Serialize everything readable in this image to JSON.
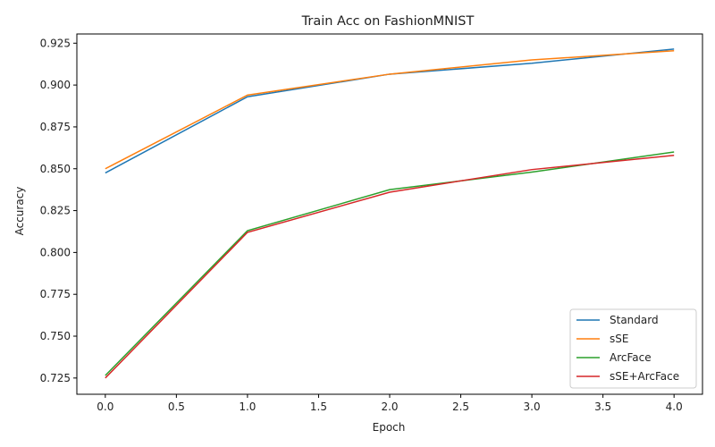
{
  "chart_data": {
    "type": "line",
    "title": "Train Acc on FashionMNIST",
    "xlabel": "Epoch",
    "ylabel": "Accuracy",
    "x": [
      0,
      1,
      2,
      3,
      4
    ],
    "xlim": [
      -0.2,
      4.2
    ],
    "ylim": [
      0.7153,
      0.9305
    ],
    "xticks": [
      0.0,
      0.5,
      1.0,
      1.5,
      2.0,
      2.5,
      3.0,
      3.5,
      4.0
    ],
    "xtick_labels": [
      "0.0",
      "0.5",
      "1.0",
      "1.5",
      "2.0",
      "2.5",
      "3.0",
      "3.5",
      "4.0"
    ],
    "yticks": [
      0.725,
      0.75,
      0.775,
      0.8,
      0.825,
      0.85,
      0.875,
      0.9,
      0.925
    ],
    "ytick_labels": [
      "0.725",
      "0.750",
      "0.775",
      "0.800",
      "0.825",
      "0.850",
      "0.875",
      "0.900",
      "0.925"
    ],
    "grid": false,
    "legend_position": "bottom-right",
    "series": [
      {
        "name": "Standard",
        "color": "#1f77b4",
        "values": [
          0.8475,
          0.893,
          0.9065,
          0.913,
          0.9215
        ]
      },
      {
        "name": "sSE",
        "color": "#ff7f0e",
        "values": [
          0.85,
          0.894,
          0.9065,
          0.915,
          0.9205
        ]
      },
      {
        "name": "ArcFace",
        "color": "#2ca02c",
        "values": [
          0.7265,
          0.813,
          0.8375,
          0.848,
          0.86
        ]
      },
      {
        "name": "sSE+ArcFace",
        "color": "#d62728",
        "values": [
          0.725,
          0.812,
          0.836,
          0.8495,
          0.858
        ]
      }
    ]
  }
}
